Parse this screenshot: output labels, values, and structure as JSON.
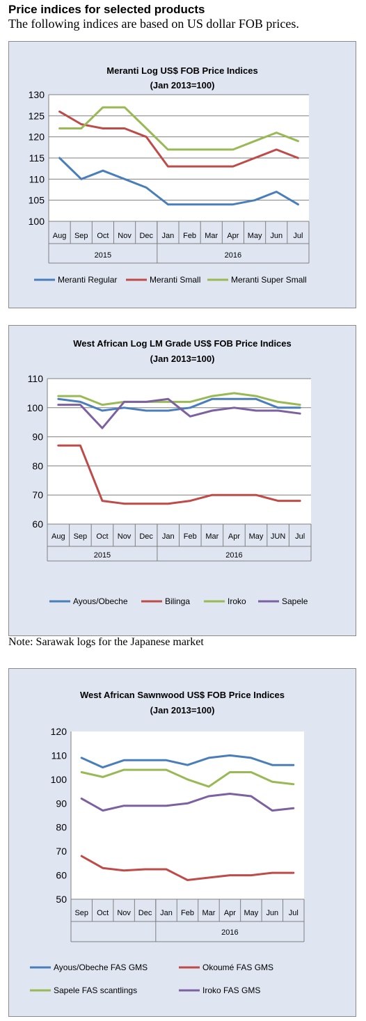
{
  "page": {
    "heading": "Price indices for selected products",
    "subheading": "The following indices are based on US dollar FOB prices.",
    "note": "Note: Sarawak logs for the Japanese market"
  },
  "chart_data": [
    {
      "type": "line",
      "title": "Meranti Log US$ FOB Price Indices",
      "subtitle": "(Jan 2013=100)",
      "categories": [
        "Aug",
        "Sep",
        "Oct",
        "Nov",
        "Dec",
        "Jan",
        "Feb",
        "Mar",
        "Apr",
        "May",
        "Jun",
        "Jul"
      ],
      "groups": [
        {
          "label": "2015",
          "span": 5
        },
        {
          "label": "2016",
          "span": 7
        }
      ],
      "ylim": [
        100,
        130
      ],
      "yticks": [
        100,
        105,
        110,
        115,
        120,
        125,
        130
      ],
      "grid": true,
      "legend": "bottom",
      "series": [
        {
          "name": "Meranti Regular",
          "color": "#4a7ebb",
          "values": [
            115,
            110,
            112,
            110,
            108,
            104,
            104,
            104,
            104,
            105,
            107,
            104
          ]
        },
        {
          "name": "Meranti Small",
          "color": "#be4b48",
          "values": [
            126,
            123,
            122,
            122,
            120,
            113,
            113,
            113,
            113,
            115,
            117,
            115
          ]
        },
        {
          "name": "Meranti Super Small",
          "color": "#98b954",
          "values": [
            122,
            122,
            127,
            127,
            122,
            117,
            117,
            117,
            117,
            119,
            121,
            119
          ]
        }
      ]
    },
    {
      "type": "line",
      "title": "West African Log LM Grade US$ FOB Price Indices",
      "subtitle": "(Jan 2013=100)",
      "categories": [
        "Aug",
        "Sep",
        "Oct",
        "Nov",
        "Dec",
        "Jan",
        "Feb",
        "Mar",
        "Apr",
        "May",
        "JUN",
        "Jul"
      ],
      "groups": [
        {
          "label": "2015",
          "span": 5
        },
        {
          "label": "2016",
          "span": 7
        }
      ],
      "ylim": [
        60,
        110
      ],
      "yticks": [
        60,
        70,
        80,
        90,
        100,
        110
      ],
      "grid": true,
      "legend": "bottom",
      "series": [
        {
          "name": "Ayous/Obeche",
          "color": "#4a7ebb",
          "values": [
            103,
            102,
            99,
            100,
            99,
            99,
            100,
            103,
            103,
            103,
            100,
            100
          ]
        },
        {
          "name": "Bilinga",
          "color": "#be4b48",
          "values": [
            87,
            87,
            68,
            67,
            67,
            67,
            68,
            70,
            70,
            70,
            68,
            68
          ]
        },
        {
          "name": "Iroko",
          "color": "#98b954",
          "values": [
            104,
            104,
            101,
            102,
            102,
            102,
            102,
            104,
            105,
            104,
            102,
            101
          ]
        },
        {
          "name": "Sapele",
          "color": "#7d60a0",
          "values": [
            101,
            101,
            93,
            102,
            102,
            103,
            97,
            99,
            100,
            99,
            99,
            98
          ]
        }
      ]
    },
    {
      "type": "line",
      "title": "West African Sawnwood US$ FOB Price Indices",
      "subtitle": "(Jan 2013=100)",
      "categories": [
        "Sep",
        "Oct",
        "Nov",
        "Dec",
        "Jan",
        "Feb",
        "Mar",
        "Apr",
        "May",
        "Jun",
        "Jul"
      ],
      "groups": [
        {
          "label": "",
          "span": 4
        },
        {
          "label": "2016",
          "span": 7
        }
      ],
      "ylim": [
        50,
        120
      ],
      "yticks": [
        50,
        60,
        70,
        80,
        90,
        100,
        110,
        120
      ],
      "grid": false,
      "legend": "bottom",
      "series": [
        {
          "name": "Ayous/Obeche FAS GMS",
          "color": "#4a7ebb",
          "values": [
            109,
            105,
            108,
            108,
            108,
            106,
            109,
            110,
            109,
            106,
            106
          ]
        },
        {
          "name": "Okoumé FAS GMS",
          "color": "#be4b48",
          "values": [
            68,
            63,
            62,
            62.5,
            62.5,
            58,
            59,
            60,
            60,
            61,
            61
          ]
        },
        {
          "name": "Sapele FAS scantlings",
          "color": "#98b954",
          "values": [
            103,
            101,
            104,
            104,
            104,
            100,
            97,
            103,
            103,
            99,
            98
          ]
        },
        {
          "name": "Iroko FAS GMS",
          "color": "#7d60a0",
          "values": [
            92,
            87,
            89,
            89,
            89,
            90,
            93,
            94,
            93,
            87,
            88
          ]
        }
      ]
    }
  ]
}
